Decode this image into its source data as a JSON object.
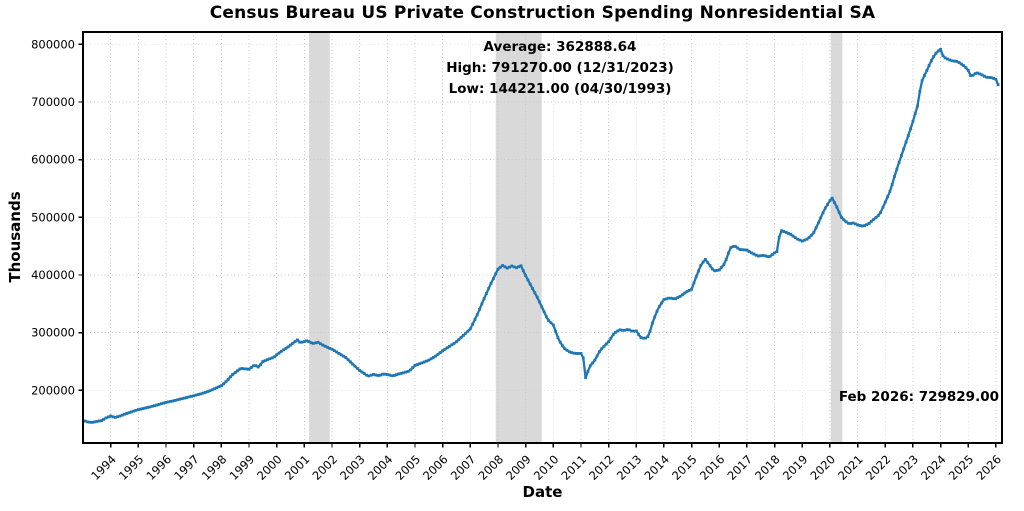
{
  "chart_data": {
    "type": "line",
    "title": "Census Bureau US Private Construction Spending Nonresidential SA",
    "xlabel": "Date",
    "ylabel": "Thousands",
    "grid": true,
    "legend": "none",
    "line_color": "#1f77b4",
    "grid_color": "#c9c9c9",
    "spine_color": "#000000",
    "recession_band_color": "#d9d9d9",
    "xlim": [
      1993.0,
      2026.22
    ],
    "ylim": [
      108600,
      821300
    ],
    "x_tick_values": [
      1994,
      1995,
      1996,
      1997,
      1998,
      1999,
      2000,
      2001,
      2002,
      2003,
      2004,
      2005,
      2006,
      2007,
      2008,
      2009,
      2010,
      2011,
      2012,
      2013,
      2014,
      2015,
      2016,
      2017,
      2018,
      2019,
      2020,
      2021,
      2022,
      2023,
      2024,
      2025,
      2026
    ],
    "x_ticks": [
      "1994",
      "1995",
      "1996",
      "1997",
      "1998",
      "1999",
      "2000",
      "2001",
      "2002",
      "2003",
      "2004",
      "2005",
      "2006",
      "2007",
      "2008",
      "2009",
      "2010",
      "2011",
      "2012",
      "2013",
      "2014",
      "2015",
      "2016",
      "2017",
      "2018",
      "2019",
      "2020",
      "2021",
      "2022",
      "2023",
      "2024",
      "2025",
      "2026"
    ],
    "y_tick_values": [
      200000,
      300000,
      400000,
      500000,
      600000,
      700000,
      800000
    ],
    "y_ticks": [
      "200000",
      "300000",
      "400000",
      "500000",
      "600000",
      "700000",
      "800000"
    ],
    "recession_bands": [
      [
        2001.17,
        2001.92
      ],
      [
        2007.92,
        2009.58
      ],
      [
        2020.03,
        2020.45
      ]
    ],
    "annotations": {
      "average_line": "Average: 362888.64",
      "high_line": "High: 791270.00 (12/31/2023)",
      "low_line": "Low: 144221.00 (04/30/1993)",
      "latest_line": "Feb 2026: 729829.00",
      "average_value": 362888.64,
      "high_value": 791270.0,
      "high_date": "12/31/2023",
      "low_value": 144221.0,
      "low_date": "04/30/1993",
      "latest_value": 729829.0,
      "latest_date": "Feb 2026"
    },
    "series": [
      {
        "name": "US Private Construction Spending Nonresidential SA",
        "units": "Thousands",
        "points": [
          [
            1993.0,
            148000
          ],
          [
            1993.17,
            145200
          ],
          [
            1993.33,
            144221
          ],
          [
            1993.5,
            146000
          ],
          [
            1993.67,
            147500
          ],
          [
            1993.86,
            152800
          ],
          [
            1994.0,
            155500
          ],
          [
            1994.15,
            152800
          ],
          [
            1994.33,
            155200
          ],
          [
            1994.5,
            158500
          ],
          [
            1994.75,
            162500
          ],
          [
            1995.0,
            166600
          ],
          [
            1995.25,
            169200
          ],
          [
            1995.5,
            172200
          ],
          [
            1995.75,
            175500
          ],
          [
            1996.0,
            179000
          ],
          [
            1996.25,
            181500
          ],
          [
            1996.5,
            184500
          ],
          [
            1996.75,
            187500
          ],
          [
            1997.0,
            190500
          ],
          [
            1997.25,
            193800
          ],
          [
            1997.5,
            197500
          ],
          [
            1997.75,
            202500
          ],
          [
            1998.0,
            208000
          ],
          [
            1998.2,
            216000
          ],
          [
            1998.4,
            227000
          ],
          [
            1998.55,
            232500
          ],
          [
            1998.7,
            238200
          ],
          [
            1998.85,
            237200
          ],
          [
            1999.0,
            236400
          ],
          [
            1999.2,
            243900
          ],
          [
            1999.35,
            240000
          ],
          [
            1999.5,
            249700
          ],
          [
            1999.7,
            253700
          ],
          [
            1999.9,
            257200
          ],
          [
            2000.0,
            261300
          ],
          [
            2000.2,
            268800
          ],
          [
            2000.4,
            274600
          ],
          [
            2000.55,
            280300
          ],
          [
            2000.75,
            287300
          ],
          [
            2000.85,
            282700
          ],
          [
            2001.0,
            284400
          ],
          [
            2001.1,
            286200
          ],
          [
            2001.3,
            281000
          ],
          [
            2001.5,
            283200
          ],
          [
            2001.7,
            277500
          ],
          [
            2001.9,
            273200
          ],
          [
            2002.0,
            271300
          ],
          [
            2002.25,
            264000
          ],
          [
            2002.5,
            256700
          ],
          [
            2002.75,
            245500
          ],
          [
            2003.0,
            234400
          ],
          [
            2003.3,
            224500
          ],
          [
            2003.5,
            227500
          ],
          [
            2003.7,
            225200
          ],
          [
            2003.85,
            228200
          ],
          [
            2004.0,
            227400
          ],
          [
            2004.2,
            224800
          ],
          [
            2004.4,
            228200
          ],
          [
            2004.6,
            230500
          ],
          [
            2004.8,
            233500
          ],
          [
            2005.0,
            243200
          ],
          [
            2005.25,
            247500
          ],
          [
            2005.5,
            252200
          ],
          [
            2005.75,
            259500
          ],
          [
            2006.0,
            268400
          ],
          [
            2006.25,
            276200
          ],
          [
            2006.5,
            284200
          ],
          [
            2006.75,
            295200
          ],
          [
            2007.0,
            306400
          ],
          [
            2007.25,
            331000
          ],
          [
            2007.5,
            359000
          ],
          [
            2007.75,
            385500
          ],
          [
            2008.0,
            410200
          ],
          [
            2008.17,
            416500
          ],
          [
            2008.33,
            411800
          ],
          [
            2008.5,
            415500
          ],
          [
            2008.67,
            412500
          ],
          [
            2008.83,
            416200
          ],
          [
            2009.0,
            399000
          ],
          [
            2009.2,
            381000
          ],
          [
            2009.4,
            363100
          ],
          [
            2009.6,
            343000
          ],
          [
            2009.8,
            322200
          ],
          [
            2010.0,
            313200
          ],
          [
            2010.2,
            287100
          ],
          [
            2010.4,
            272400
          ],
          [
            2010.6,
            266200
          ],
          [
            2010.8,
            263700
          ],
          [
            2011.0,
            264000
          ],
          [
            2011.08,
            257500
          ],
          [
            2011.17,
            220500
          ],
          [
            2011.3,
            240300
          ],
          [
            2011.5,
            252200
          ],
          [
            2011.7,
            269600
          ],
          [
            2011.85,
            277200
          ],
          [
            2012.0,
            284200
          ],
          [
            2012.2,
            299000
          ],
          [
            2012.4,
            305000
          ],
          [
            2012.55,
            303500
          ],
          [
            2012.7,
            305800
          ],
          [
            2012.85,
            302500
          ],
          [
            2013.0,
            303000
          ],
          [
            2013.15,
            291800
          ],
          [
            2013.3,
            289500
          ],
          [
            2013.45,
            294100
          ],
          [
            2013.6,
            319200
          ],
          [
            2013.8,
            343000
          ],
          [
            2014.0,
            357200
          ],
          [
            2014.2,
            360200
          ],
          [
            2014.4,
            358500
          ],
          [
            2014.6,
            363200
          ],
          [
            2014.8,
            370500
          ],
          [
            2015.0,
            375300
          ],
          [
            2015.2,
            401100
          ],
          [
            2015.35,
            418400
          ],
          [
            2015.5,
            427000
          ],
          [
            2015.65,
            417200
          ],
          [
            2015.8,
            406900
          ],
          [
            2016.0,
            408600
          ],
          [
            2016.2,
            420000
          ],
          [
            2016.4,
            447100
          ],
          [
            2016.55,
            450500
          ],
          [
            2016.75,
            444200
          ],
          [
            2017.0,
            443100
          ],
          [
            2017.2,
            437300
          ],
          [
            2017.4,
            432800
          ],
          [
            2017.6,
            434000
          ],
          [
            2017.8,
            431000
          ],
          [
            2018.0,
            438500
          ],
          [
            2018.1,
            441000
          ],
          [
            2018.2,
            477600
          ],
          [
            2018.4,
            474200
          ],
          [
            2018.6,
            470100
          ],
          [
            2018.8,
            462700
          ],
          [
            2019.0,
            458700
          ],
          [
            2019.2,
            462700
          ],
          [
            2019.4,
            472000
          ],
          [
            2019.6,
            492000
          ],
          [
            2019.8,
            513300
          ],
          [
            2020.0,
            528800
          ],
          [
            2020.08,
            533400
          ],
          [
            2020.25,
            517900
          ],
          [
            2020.4,
            500600
          ],
          [
            2020.55,
            493200
          ],
          [
            2020.7,
            488600
          ],
          [
            2020.85,
            490300
          ],
          [
            2021.0,
            486800
          ],
          [
            2021.2,
            484500
          ],
          [
            2021.4,
            488600
          ],
          [
            2021.6,
            497000
          ],
          [
            2021.8,
            505000
          ],
          [
            2022.0,
            526300
          ],
          [
            2022.2,
            548600
          ],
          [
            2022.35,
            573700
          ],
          [
            2022.5,
            595300
          ],
          [
            2022.7,
            623400
          ],
          [
            2022.9,
            650900
          ],
          [
            2023.0,
            666100
          ],
          [
            2023.17,
            693600
          ],
          [
            2023.3,
            733300
          ],
          [
            2023.5,
            754400
          ],
          [
            2023.65,
            770200
          ],
          [
            2023.8,
            783100
          ],
          [
            2023.92,
            788500
          ],
          [
            2024.0,
            791270
          ],
          [
            2024.1,
            777900
          ],
          [
            2024.25,
            774400
          ],
          [
            2024.4,
            771400
          ],
          [
            2024.6,
            770300
          ],
          [
            2024.8,
            764400
          ],
          [
            2024.98,
            756800
          ],
          [
            2025.1,
            743900
          ],
          [
            2025.3,
            750900
          ],
          [
            2025.5,
            746900
          ],
          [
            2025.65,
            742800
          ],
          [
            2025.85,
            742200
          ],
          [
            2026.0,
            739300
          ],
          [
            2026.08,
            729829
          ]
        ]
      }
    ]
  }
}
